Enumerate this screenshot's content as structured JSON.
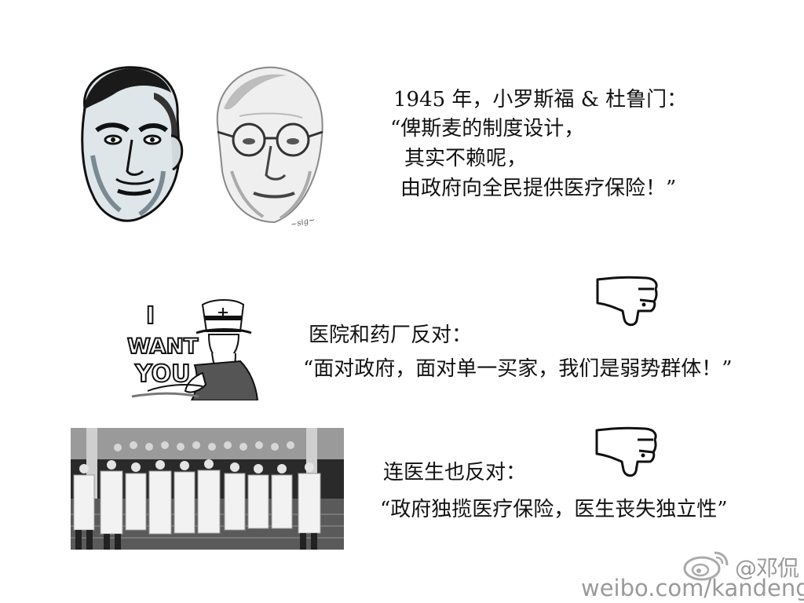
{
  "section1": {
    "lines": [
      "1945 年，小罗斯福 & 杜鲁门：",
      "“俾斯麦的制度设计，",
      "其实不赖呢，",
      "由政府向全民提供医疗保险！”"
    ]
  },
  "section2": {
    "heading": "医院和药厂反对：",
    "quote": "“面对政府，面对单一买家，我们是弱势群体！”"
  },
  "section3": {
    "heading": "连医生也反对：",
    "quote": "“政府独揽医疗保险，医生丧失独立性”"
  },
  "poster": {
    "text_line1": "I",
    "text_line2": "WANT",
    "text_line3": "YOU"
  },
  "watermark": {
    "handle": "@邓侃",
    "url": "weibo.com/kandeng"
  },
  "icons": {
    "thumb1": "thumbs-down-icon",
    "thumb2": "thumbs-down-icon",
    "weibo": "weibo-logo-icon"
  },
  "colors": {
    "text": "#111111",
    "watermark": "#9a9a9a",
    "background": "#ffffff"
  }
}
